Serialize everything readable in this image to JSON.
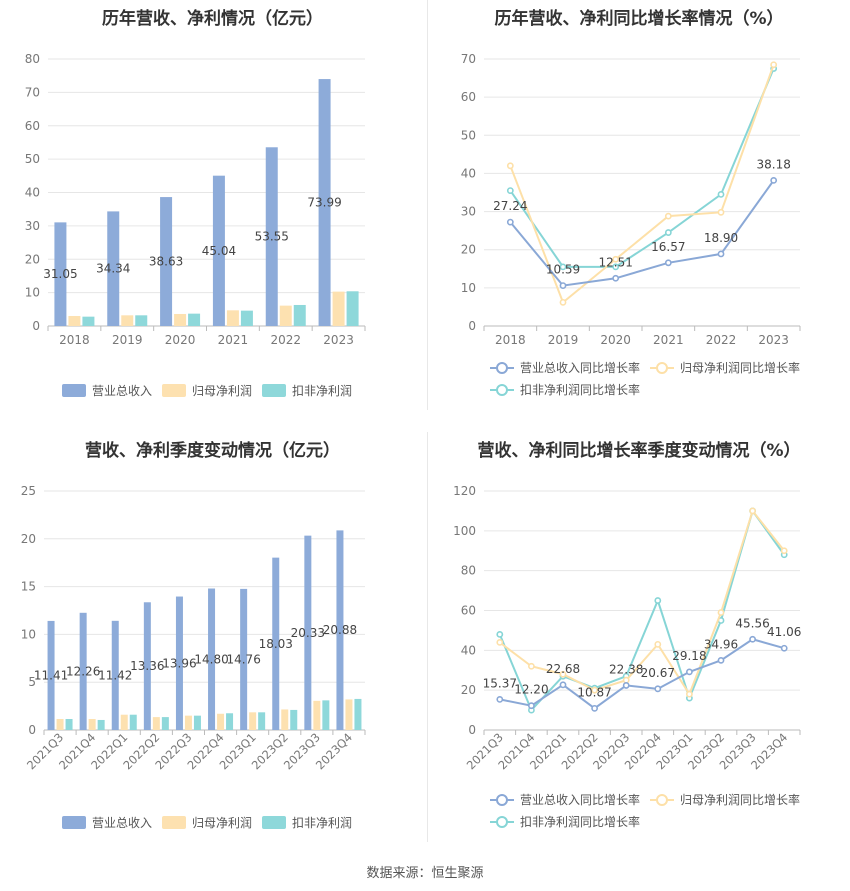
{
  "source_label": "数据来源：恒生聚源",
  "colors": {
    "revenue": "#8dabd9",
    "parent_profit": "#fde1b0",
    "deducted_profit": "#8ed8da",
    "line_revenue": "#8aa8d6",
    "line_parent": "#fde0a8",
    "line_deducted": "#86d5d6"
  },
  "chart_data": [
    {
      "id": "annual-amounts",
      "type": "bar",
      "title": "历年营收、净利情况（亿元）",
      "categories": [
        "2018",
        "2019",
        "2020",
        "2021",
        "2022",
        "2023"
      ],
      "ylim": [
        0,
        80
      ],
      "yticks": [
        0,
        10,
        20,
        30,
        40,
        50,
        60,
        70,
        80
      ],
      "grid": true,
      "legend_position": "bottom",
      "series": [
        {
          "name": "营业总收入",
          "values": [
            31.05,
            34.34,
            38.63,
            45.04,
            53.55,
            73.99
          ],
          "labels": [
            "31.05",
            "34.34",
            "38.63",
            "45.04",
            "53.55",
            "73.99"
          ]
        },
        {
          "name": "归母净利润",
          "values": [
            3.0,
            3.2,
            3.6,
            4.7,
            6.1,
            10.3
          ]
        },
        {
          "name": "扣非净利润",
          "values": [
            2.8,
            3.2,
            3.7,
            4.6,
            6.3,
            10.4
          ]
        }
      ]
    },
    {
      "id": "annual-growth",
      "type": "line",
      "title": "历年营收、净利同比增长率情况（%）",
      "categories": [
        "2018",
        "2019",
        "2020",
        "2021",
        "2022",
        "2023"
      ],
      "ylim": [
        0,
        70
      ],
      "yticks": [
        0,
        10,
        20,
        30,
        40,
        50,
        60,
        70
      ],
      "grid": true,
      "legend_position": "bottom",
      "series": [
        {
          "name": "营业总收入同比增长率",
          "values": [
            27.24,
            10.59,
            12.51,
            16.57,
            18.9,
            38.18
          ],
          "labels": [
            "27.24",
            "10.59",
            "12.51",
            "16.57",
            "18.90",
            "38.18"
          ]
        },
        {
          "name": "归母净利润同比增长率",
          "values": [
            42.0,
            6.2,
            17.5,
            28.8,
            29.8,
            68.5
          ]
        },
        {
          "name": "扣非净利润同比增长率",
          "values": [
            35.5,
            15.5,
            15.5,
            24.5,
            34.5,
            67.5
          ]
        }
      ]
    },
    {
      "id": "quarterly-amounts",
      "type": "bar",
      "title": "营收、净利季度变动情况（亿元）",
      "categories": [
        "2021Q3",
        "2021Q4",
        "2022Q1",
        "2022Q2",
        "2022Q3",
        "2022Q4",
        "2023Q1",
        "2023Q2",
        "2023Q3",
        "2023Q4"
      ],
      "ylim": [
        0,
        25
      ],
      "yticks": [
        0,
        5,
        10,
        15,
        20,
        25
      ],
      "grid": true,
      "legend_position": "bottom",
      "series": [
        {
          "name": "营业总收入",
          "values": [
            11.41,
            12.26,
            11.42,
            13.36,
            13.96,
            14.8,
            14.76,
            18.03,
            20.33,
            20.88
          ],
          "labels": [
            "11.41",
            "12.26",
            "11.42",
            "13.36",
            "13.96",
            "14.80",
            "14.76",
            "18.03",
            "20.33",
            "20.88"
          ]
        },
        {
          "name": "归母净利润",
          "values": [
            1.15,
            1.15,
            1.6,
            1.35,
            1.5,
            1.7,
            1.85,
            2.15,
            3.05,
            3.2
          ]
        },
        {
          "name": "扣非净利润",
          "values": [
            1.15,
            1.05,
            1.6,
            1.35,
            1.5,
            1.75,
            1.85,
            2.1,
            3.1,
            3.25
          ]
        }
      ]
    },
    {
      "id": "quarterly-growth",
      "type": "line",
      "title": "营收、净利同比增长率季度变动情况（%）",
      "categories": [
        "2021Q3",
        "2021Q4",
        "2022Q1",
        "2022Q2",
        "2022Q3",
        "2022Q4",
        "2023Q1",
        "2023Q2",
        "2023Q3",
        "2023Q4"
      ],
      "ylim": [
        0,
        120
      ],
      "yticks": [
        0,
        20,
        40,
        60,
        80,
        100,
        120
      ],
      "grid": true,
      "legend_position": "bottom",
      "series": [
        {
          "name": "营业总收入同比增长率",
          "values": [
            15.37,
            12.2,
            22.68,
            10.87,
            22.38,
            20.67,
            29.18,
            34.96,
            45.56,
            41.06
          ],
          "labels": [
            "15.37",
            "12.20",
            "22.68",
            "10.87",
            "22.38",
            "20.67",
            "29.18",
            "34.96",
            "45.56",
            "41.06"
          ]
        },
        {
          "name": "归母净利润同比增长率",
          "values": [
            44,
            32,
            28,
            20,
            25,
            43,
            18,
            59,
            110,
            90
          ]
        },
        {
          "name": "扣非净利润同比增长率",
          "values": [
            48,
            10,
            27,
            21,
            27,
            65,
            16,
            55,
            110,
            88
          ]
        }
      ]
    }
  ]
}
